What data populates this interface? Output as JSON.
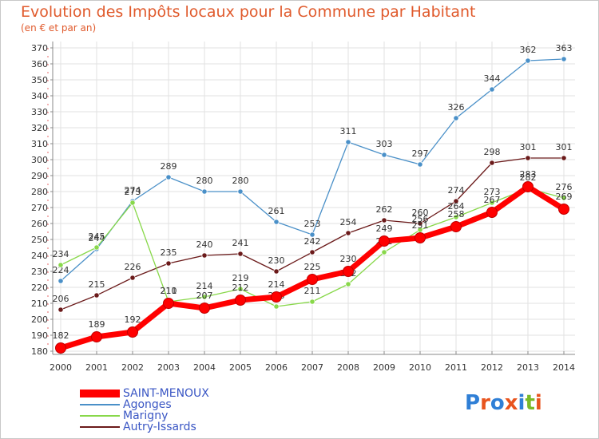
{
  "title": "Evolution des Impôts locaux pour la Commune par Habitant",
  "subtitle": "(en € et par an)",
  "logo": {
    "text": "Proxiti",
    "colors": [
      "#2f7fd6",
      "#e8541e",
      "#2f7fd6",
      "#e8541e",
      "#2f7fd6",
      "#7ab929",
      "#e8541e"
    ]
  },
  "chart_data": {
    "type": "line",
    "title": "Evolution des Impôts locaux pour la Commune par Habitant",
    "ylabel": "(en € et par an)",
    "xlabel": "",
    "ylim": [
      180,
      370
    ],
    "ytick_step": 10,
    "grid": true,
    "x": [
      "2000",
      "2001",
      "2002",
      "2003",
      "2004",
      "2005",
      "2006",
      "2007",
      "2008",
      "2009",
      "2010",
      "2011",
      "2012",
      "2013",
      "2014"
    ],
    "series": [
      {
        "name": "SAINT-MENOUX",
        "color": "#ff0000",
        "values": [
          182,
          189,
          192,
          210,
          207,
          212,
          214,
          225,
          230,
          249,
          251,
          258,
          267,
          283,
          269
        ]
      },
      {
        "name": "Agonges",
        "color": "#4a90c8",
        "values": [
          224,
          244,
          274,
          289,
          280,
          280,
          261,
          253,
          311,
          303,
          297,
          326,
          344,
          362,
          363
        ]
      },
      {
        "name": "Marigny",
        "color": "#88d84a",
        "values": [
          234,
          245,
          273,
          211,
          214,
          219,
          208,
          211,
          222,
          242,
          256,
          264,
          273,
          282,
          276
        ]
      },
      {
        "name": "Autry-Issards",
        "color": "#6b1a1a",
        "values": [
          206,
          215,
          226,
          235,
          240,
          241,
          230,
          242,
          254,
          262,
          260,
          274,
          298,
          301,
          301
        ]
      }
    ],
    "legend_position": "bottom-left"
  }
}
